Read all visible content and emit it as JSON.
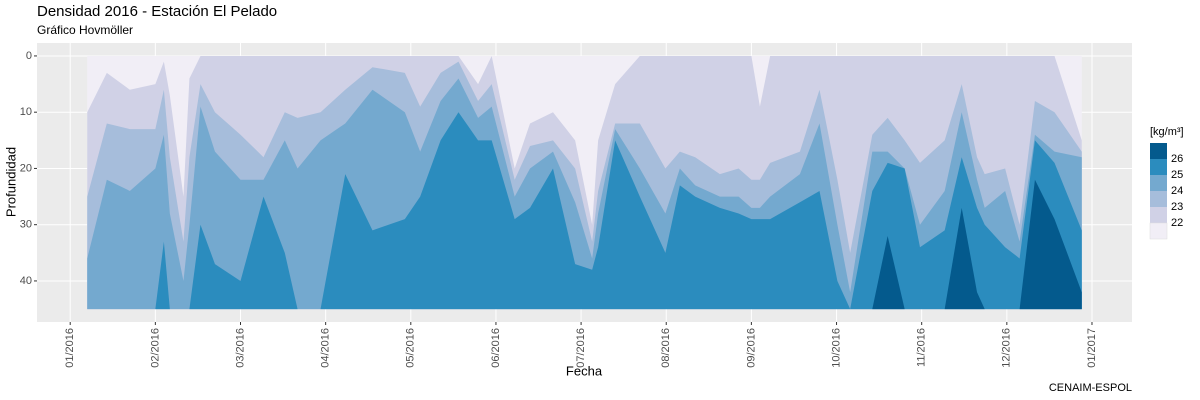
{
  "chart_data": {
    "type": "hovmoller",
    "title": "Densidad 2016 - Estación El Pelado",
    "subtitle": "Gráfico Hovmöller",
    "x_label": "Fecha",
    "y_label": "Profundidad",
    "caption": "CENAIM-ESPOL",
    "legend_title": "[kg/m³]",
    "base_color": "#f1eef6",
    "depth_range": [
      0,
      45
    ],
    "xlim": [
      -0.39,
      12.47
    ],
    "ylim": [
      -2.3,
      47.3
    ],
    "reverse_y": true,
    "grid": true,
    "xticks": [
      {
        "value": 0,
        "label": "01/2016"
      },
      {
        "value": 1,
        "label": "02/2016"
      },
      {
        "value": 2,
        "label": "03/2016"
      },
      {
        "value": 3,
        "label": "04/2016"
      },
      {
        "value": 4,
        "label": "05/2016"
      },
      {
        "value": 5,
        "label": "06/2016"
      },
      {
        "value": 6,
        "label": "07/2016"
      },
      {
        "value": 7,
        "label": "08/2016"
      },
      {
        "value": 8,
        "label": "09/2016"
      },
      {
        "value": 9,
        "label": "10/2016"
      },
      {
        "value": 10,
        "label": "11/2016"
      },
      {
        "value": 11,
        "label": "12/2016"
      },
      {
        "value": 12,
        "label": "01/2017"
      }
    ],
    "yticks": [
      0,
      10,
      20,
      30,
      40
    ],
    "x": [
      0.2,
      0.43,
      0.7,
      1.0,
      1.1,
      1.17,
      1.33,
      1.4,
      1.53,
      1.7,
      2.0,
      2.27,
      2.52,
      2.67,
      2.94,
      3.23,
      3.55,
      3.93,
      4.11,
      4.35,
      4.56,
      4.79,
      4.95,
      5.22,
      5.4,
      5.67,
      5.93,
      6.13,
      6.2,
      6.4,
      6.69,
      6.99,
      7.16,
      7.34,
      7.63,
      7.85,
      8.0,
      8.1,
      8.22,
      8.57,
      8.8,
      9.01,
      9.16,
      9.42,
      9.6,
      9.8,
      9.98,
      10.27,
      10.47,
      10.65,
      10.74,
      10.98,
      11.15,
      11.33,
      11.56,
      11.88
    ],
    "series": [
      {
        "name": "22",
        "color": "#d0d1e6",
        "values": [
          10,
          3,
          6,
          5,
          1,
          7,
          25,
          4,
          0,
          0,
          0,
          0,
          0,
          0,
          0,
          0,
          0,
          0,
          0,
          0,
          0,
          5,
          0,
          20,
          12,
          10,
          15,
          30,
          15,
          5,
          0,
          0,
          0,
          0,
          0,
          0,
          0,
          9,
          0,
          0,
          0,
          0,
          0,
          0,
          0,
          0,
          0,
          0,
          0,
          0,
          0,
          0,
          0,
          0,
          0,
          15
        ]
      },
      {
        "name": "23",
        "color": "#a6bddb",
        "values": [
          25,
          12,
          13,
          13,
          6,
          18,
          33,
          18,
          5,
          10,
          14,
          18,
          10,
          11,
          10,
          6,
          2,
          3,
          9,
          3,
          1,
          8,
          5,
          22,
          16,
          15,
          20,
          33,
          24,
          12,
          12,
          20,
          17,
          18,
          21,
          20,
          22,
          22,
          19,
          17,
          6,
          22,
          35,
          14,
          11,
          15,
          19,
          15,
          5,
          18,
          21,
          20,
          30,
          8,
          10,
          17
        ]
      },
      {
        "name": "24",
        "color": "#74a9cf",
        "values": [
          36,
          22,
          24,
          20,
          14,
          28,
          40,
          30,
          9,
          17,
          22,
          22,
          15,
          20,
          15,
          12,
          6,
          10,
          17,
          8,
          4,
          11,
          9,
          25,
          20,
          17,
          26,
          36,
          28,
          13,
          20,
          28,
          20,
          23,
          25,
          25,
          27,
          27,
          25,
          21,
          12,
          30,
          42,
          17,
          17,
          20,
          30,
          24,
          10,
          22,
          27,
          24,
          33,
          14,
          17,
          18
        ]
      },
      {
        "name": "25",
        "color": "#2b8cbe",
        "values": [
          45,
          45,
          45,
          45,
          33,
          45,
          45,
          45,
          30,
          37,
          40,
          25,
          35,
          45,
          45,
          21,
          31,
          29,
          25,
          15,
          10,
          15,
          15,
          29,
          27,
          20,
          37,
          38,
          34,
          15,
          25,
          35,
          23,
          25,
          27,
          28,
          29,
          29,
          29,
          26,
          24,
          40,
          45,
          24,
          19,
          20,
          34,
          31,
          18,
          27,
          30,
          34,
          36,
          15,
          19,
          31
        ]
      },
      {
        "name": "26",
        "color": "#045a8d",
        "values": [
          45,
          45,
          45,
          45,
          45,
          45,
          45,
          45,
          45,
          45,
          45,
          45,
          45,
          45,
          45,
          45,
          45,
          45,
          45,
          45,
          45,
          45,
          45,
          45,
          45,
          45,
          45,
          45,
          45,
          45,
          45,
          45,
          45,
          45,
          45,
          45,
          45,
          45,
          45,
          45,
          45,
          45,
          45,
          45,
          32,
          45,
          45,
          45,
          27,
          42,
          45,
          45,
          45,
          22,
          29,
          42
        ]
      }
    ]
  }
}
